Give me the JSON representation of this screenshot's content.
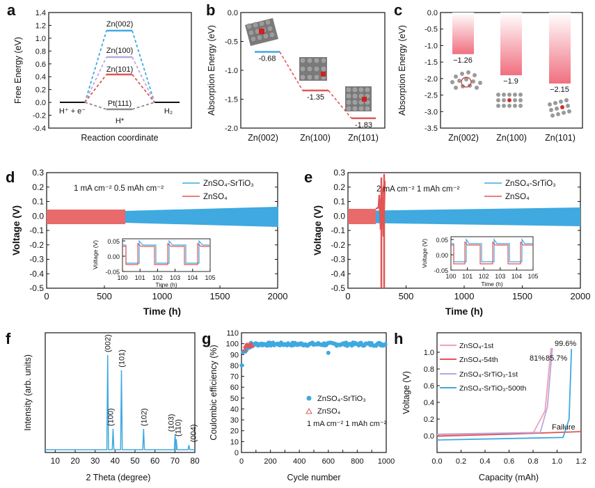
{
  "colors": {
    "blue": "#3fa9e0",
    "red": "#e25555",
    "pink": "#f0a0b0",
    "lav": "#b8a8e0",
    "grey": "#8a8a8a",
    "axis": "#111111"
  },
  "panels": {
    "a": {
      "letter": "a",
      "ylabel": "Free Energy (eV)",
      "xlabel": "Reaction coordinate"
    },
    "b": {
      "letter": "b",
      "ylabel": "Absorption Energy (eV)"
    },
    "c": {
      "letter": "c",
      "ylabel": "Absorption Energy (eV)"
    },
    "d": {
      "letter": "d",
      "ylabel": "Voltage (V)",
      "xlabel": "Time (h)",
      "condition": "1 mA cm⁻² 0.5 mAh cm⁻²",
      "inset_ylabel": "Voltage (V)",
      "inset_xlabel": "Time (h)"
    },
    "e": {
      "letter": "e",
      "ylabel": "Voltage (V)",
      "xlabel": "Time (h)",
      "condition": "2 mA cm⁻² 1 mAh cm⁻²",
      "inset_ylabel": "Voltage (V)",
      "inset_xlabel": "Time (h)"
    },
    "f": {
      "letter": "f",
      "ylabel": "Intensity (arb. units)",
      "xlabel": "2 Theta (degree)"
    },
    "g": {
      "letter": "g",
      "ylabel": "Coulombic efficiency (%)",
      "xlabel": "Cycle number",
      "condition": "1 mA cm⁻² 1 mAh cm⁻²"
    },
    "h": {
      "letter": "h",
      "ylabel": "Voltage (V)",
      "xlabel": "Capacity (mAh)",
      "failure_label": "Failure"
    }
  },
  "legends": {
    "de": [
      "ZnSO₄-SrTiO₃",
      "ZnSO₄"
    ],
    "g": [
      "ZnSO₄-SrTiO₃",
      "ZnSO₄"
    ],
    "h": [
      "ZnSO₄-1st",
      "ZnSO₄-54th",
      "ZnSO₄-SrTiO₃-1st",
      "ZnSO₄-SrTiO₃-500th"
    ]
  },
  "chart_data": [
    {
      "panel": "a",
      "type": "line",
      "title": "",
      "xlabel": "Reaction coordinate",
      "ylabel": "Free Energy (eV)",
      "ylim": [
        -0.4,
        1.4
      ],
      "yticks": [
        "-0.4",
        "-0.2",
        "0.0",
        "0.2",
        "0.4",
        "0.6",
        "0.8",
        "1.0",
        "1.2",
        "1.4"
      ],
      "levels": [
        {
          "label": "Zn(002)",
          "value": 1.13
        },
        {
          "label": "Zn(100)",
          "value": 0.72
        },
        {
          "label": "Zn(101)",
          "value": 0.43
        },
        {
          "label": "Pt(111)",
          "value": -0.1
        }
      ],
      "endpoints": [
        "H⁺ + e⁻",
        "H₂"
      ],
      "intermediate_label": "H*"
    },
    {
      "panel": "b",
      "type": "line",
      "xlabel": "",
      "ylabel": "Absorption Energy (eV)",
      "ylim": [
        -2.0,
        0.0
      ],
      "yticks": [
        "0.0",
        "-0.5",
        "-1.0",
        "-1.5",
        "-2.0"
      ],
      "categories": [
        "Zn(002)",
        "Zn(100)",
        "Zn(101)"
      ],
      "values": [
        -0.68,
        -1.35,
        -1.83
      ],
      "value_labels": [
        "-0.68",
        "-1.35",
        "-1.83"
      ]
    },
    {
      "panel": "c",
      "type": "bar",
      "xlabel": "",
      "ylabel": "Absorption Energy (eV)",
      "ylim": [
        -3.5,
        0.0
      ],
      "yticks": [
        "0.0",
        "-0.5",
        "-1.0",
        "-1.5",
        "-2.0",
        "-2.5",
        "-3.0",
        "-3.5"
      ],
      "categories": [
        "Zn(002)",
        "Zn(100)",
        "Zn(101)"
      ],
      "values": [
        -1.26,
        -1.9,
        -2.15
      ],
      "value_labels": [
        "−1.26",
        "−1.9",
        "−2.15"
      ]
    },
    {
      "panel": "d",
      "type": "area",
      "xlabel": "Time (h)",
      "ylabel": "Voltage (V)",
      "xlim": [
        0,
        2000
      ],
      "ylim": [
        -0.5,
        0.3
      ],
      "xticks": [
        "0",
        "500",
        "1000",
        "1500",
        "2000"
      ],
      "yticks": [
        "0.3",
        "0.2",
        "0.1",
        "0.0",
        "-0.1",
        "-0.2",
        "-0.3",
        "-0.4",
        "-0.5"
      ],
      "series": [
        {
          "name": "ZnSO₄-SrTiO₃",
          "x": [
            0,
            2000
          ],
          "amplitude": [
            0.02,
            0.06
          ]
        },
        {
          "name": "ZnSO₄",
          "x": [
            0,
            680
          ],
          "amplitude": [
            0.03,
            0.03
          ]
        }
      ],
      "inset": {
        "xlim": [
          100,
          105
        ],
        "ylim": [
          -0.05,
          0.05
        ],
        "xticks": [
          "100",
          "101",
          "102",
          "103",
          "104",
          "105"
        ],
        "yticks": [
          "0.05",
          "0.00",
          "-0.05"
        ]
      }
    },
    {
      "panel": "e",
      "type": "area",
      "xlabel": "Time (h)",
      "ylabel": "Voltage (V)",
      "xlim": [
        0,
        2000
      ],
      "ylim": [
        -0.5,
        0.3
      ],
      "xticks": [
        "0",
        "500",
        "1000",
        "1500",
        "2000"
      ],
      "yticks": [
        "0.3",
        "0.2",
        "0.1",
        "0.0",
        "-0.1",
        "-0.2",
        "-0.3",
        "-0.4",
        "-0.5"
      ],
      "series": [
        {
          "name": "ZnSO₄-SrTiO₃",
          "x": [
            0,
            2000
          ],
          "amplitude": [
            0.035,
            0.05
          ]
        },
        {
          "name": "ZnSO₄",
          "x": [
            0,
            300
          ],
          "amplitude": [
            0.04,
            0.04
          ],
          "failure_at": 290
        }
      ],
      "inset": {
        "xlim": [
          100,
          105
        ],
        "ylim": [
          -0.05,
          0.05
        ],
        "xticks": [
          "100",
          "101",
          "102",
          "103",
          "104",
          "105"
        ],
        "yticks": [
          "0.05",
          "0.00",
          "-0.05"
        ]
      }
    },
    {
      "panel": "f",
      "type": "line",
      "xlabel": "2 Theta (degree)",
      "ylabel": "Intensity (arb. units)",
      "xlim": [
        5,
        80
      ],
      "xticks": [
        "10",
        "20",
        "30",
        "40",
        "50",
        "60",
        "70",
        "80"
      ],
      "peaks": [
        {
          "x": 36.3,
          "h": 1.0,
          "label": "(002)"
        },
        {
          "x": 39.0,
          "h": 0.22,
          "label": "(100)"
        },
        {
          "x": 43.2,
          "h": 0.84,
          "label": "(101)"
        },
        {
          "x": 54.3,
          "h": 0.22,
          "label": "(102)"
        },
        {
          "x": 70.1,
          "h": 0.16,
          "label": "(103)"
        },
        {
          "x": 70.7,
          "h": 0.11,
          "label": "(110)"
        },
        {
          "x": 77.0,
          "h": 0.05,
          "label": "(004)"
        }
      ]
    },
    {
      "panel": "g",
      "type": "scatter",
      "xlabel": "Cycle number",
      "ylabel": "Coulombic efficiency (%)",
      "xlim": [
        0,
        1000
      ],
      "ylim": [
        0,
        110
      ],
      "xticks": [
        "0",
        "100",
        "200",
        "300",
        "400",
        "500",
        "600",
        "700",
        "800",
        "900",
        "1000"
      ],
      "yticks": [
        "0",
        "10",
        "20",
        "30",
        "40",
        "50",
        "60",
        "70",
        "80",
        "90",
        "100",
        "110"
      ],
      "series": [
        {
          "name": "ZnSO₄-SrTiO₃",
          "marker": "circle",
          "steady": 99.5
        },
        {
          "name": "ZnSO₄",
          "marker": "triangle",
          "steady": 98.5,
          "cycles": 54
        }
      ],
      "outliers": [
        {
          "x": 600,
          "y": 91.5
        }
      ]
    },
    {
      "panel": "h",
      "type": "line",
      "xlabel": "Capacity (mAh)",
      "ylabel": "Voltage (V)",
      "xlim": [
        0,
        1.2
      ],
      "ylim": [
        -0.1,
        1.1
      ],
      "xticks": [
        "0.0",
        "0.2",
        "0.4",
        "0.6",
        "0.8",
        "1.0",
        "1.2"
      ],
      "yticks": [
        "0.0",
        "0.2",
        "0.4",
        "0.6",
        "0.8",
        "1.0"
      ],
      "efficiency_labels": [
        "81%",
        "85.7%",
        "99.6%"
      ],
      "series": [
        {
          "name": "ZnSO₄-1st",
          "x": [
            0,
            0.8,
            0.9,
            0.95
          ],
          "y": [
            0.01,
            0.03,
            0.3,
            1.05
          ]
        },
        {
          "name": "ZnSO₄-54th",
          "x": [
            0,
            0.6,
            1.2
          ],
          "y": [
            -0.005,
            0.02,
            0.05
          ]
        },
        {
          "name": "ZnSO₄-SrTiO₃-1st",
          "x": [
            0,
            0.86,
            0.92,
            0.96
          ],
          "y": [
            0.02,
            0.04,
            0.35,
            1.05
          ]
        },
        {
          "name": "ZnSO₄-SrTiO₃-500th",
          "x": [
            0,
            1.05,
            1.1,
            1.12
          ],
          "y": [
            -0.05,
            -0.02,
            0.2,
            1.04
          ]
        }
      ]
    }
  ]
}
